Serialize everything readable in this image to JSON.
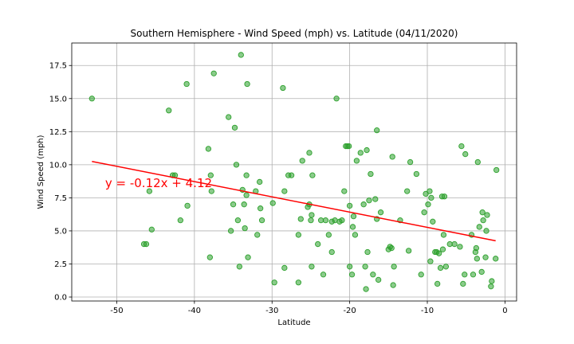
{
  "chart_data": {
    "type": "scatter",
    "title": "Southern Hemisphere - Wind Speed (mph) vs. Latitude (04/11/2020)",
    "xlabel": "Latitude",
    "ylabel": "Wind Speed (mph)",
    "xlim": [
      -55.8,
      1.5
    ],
    "ylim": [
      -0.3,
      19.2
    ],
    "xticks": [
      -50,
      -40,
      -30,
      -20,
      -10,
      0
    ],
    "yticks": [
      0.0,
      2.5,
      5.0,
      7.5,
      10.0,
      12.5,
      15.0,
      17.5
    ],
    "grid": true,
    "point_color": "#2ca02c",
    "line_color": "#ff0000",
    "regression": {
      "slope": -0.12,
      "intercept": 4.12,
      "x_range": [
        -53.2,
        -1.2
      ],
      "y_at_range": [
        10.25,
        4.25
      ]
    },
    "annotation": {
      "text": "y = -0.12x + 4.12",
      "x": -51.5,
      "y": 8.3
    },
    "points": [
      [
        -53.2,
        15.0
      ],
      [
        -46.5,
        4.0
      ],
      [
        -46.2,
        4.0
      ],
      [
        -45.8,
        8.0
      ],
      [
        -45.5,
        5.1
      ],
      [
        -43.3,
        14.1
      ],
      [
        -42.8,
        9.2
      ],
      [
        -42.5,
        9.2
      ],
      [
        -41.8,
        5.8
      ],
      [
        -41.0,
        16.1
      ],
      [
        -40.9,
        6.9
      ],
      [
        -38.2,
        11.2
      ],
      [
        -38.0,
        3.0
      ],
      [
        -37.9,
        9.2
      ],
      [
        -37.8,
        8.0
      ],
      [
        -37.5,
        16.9
      ],
      [
        -35.6,
        13.6
      ],
      [
        -35.3,
        5.0
      ],
      [
        -35.0,
        7.0
      ],
      [
        -34.8,
        12.8
      ],
      [
        -34.6,
        10.0
      ],
      [
        -34.4,
        5.8
      ],
      [
        -34.2,
        2.3
      ],
      [
        -34.0,
        18.3
      ],
      [
        -33.8,
        8.1
      ],
      [
        -33.6,
        7.0
      ],
      [
        -33.5,
        5.2
      ],
      [
        -33.3,
        9.2
      ],
      [
        -33.2,
        16.1
      ],
      [
        -33.1,
        3.0
      ],
      [
        -33.3,
        7.7
      ],
      [
        -32.1,
        8.0
      ],
      [
        -31.9,
        4.7
      ],
      [
        -31.6,
        8.7
      ],
      [
        -31.5,
        6.7
      ],
      [
        -31.3,
        5.8
      ],
      [
        -29.9,
        7.1
      ],
      [
        -29.7,
        1.1
      ],
      [
        -28.6,
        15.8
      ],
      [
        -28.4,
        8.0
      ],
      [
        -28.4,
        2.2
      ],
      [
        -27.9,
        9.2
      ],
      [
        -27.5,
        9.2
      ],
      [
        -26.6,
        4.7
      ],
      [
        -26.6,
        1.1
      ],
      [
        -26.1,
        10.3
      ],
      [
        -26.3,
        5.9
      ],
      [
        -25.4,
        6.8
      ],
      [
        -25.2,
        10.9
      ],
      [
        -25.2,
        7.0
      ],
      [
        -25.0,
        5.8
      ],
      [
        -24.9,
        6.2
      ],
      [
        -24.9,
        2.3
      ],
      [
        -24.8,
        9.2
      ],
      [
        -24.1,
        4.0
      ],
      [
        -23.7,
        5.8
      ],
      [
        -23.4,
        1.7
      ],
      [
        -23.1,
        5.8
      ],
      [
        -22.7,
        4.7
      ],
      [
        -22.3,
        3.4
      ],
      [
        -22.3,
        5.7
      ],
      [
        -21.9,
        5.8
      ],
      [
        -21.7,
        15.0
      ],
      [
        -21.3,
        5.7
      ],
      [
        -21.0,
        5.8
      ],
      [
        -20.7,
        8.0
      ],
      [
        -20.5,
        11.4
      ],
      [
        -20.3,
        11.4
      ],
      [
        -20.1,
        11.4
      ],
      [
        -20.0,
        6.9
      ],
      [
        -20.0,
        2.3
      ],
      [
        -19.7,
        1.7
      ],
      [
        -19.6,
        5.3
      ],
      [
        -19.5,
        6.1
      ],
      [
        -19.3,
        4.7
      ],
      [
        -19.1,
        10.3
      ],
      [
        -18.6,
        10.9
      ],
      [
        -18.2,
        7.0
      ],
      [
        -18.0,
        2.3
      ],
      [
        -17.8,
        11.1
      ],
      [
        -17.7,
        3.4
      ],
      [
        -17.9,
        0.6
      ],
      [
        -17.5,
        7.3
      ],
      [
        -17.3,
        9.3
      ],
      [
        -17.0,
        1.7
      ],
      [
        -16.7,
        7.4
      ],
      [
        -16.5,
        12.6
      ],
      [
        -16.5,
        5.9
      ],
      [
        -16.3,
        1.3
      ],
      [
        -16.0,
        6.4
      ],
      [
        -15.0,
        3.6
      ],
      [
        -14.8,
        3.8
      ],
      [
        -14.6,
        3.7
      ],
      [
        -14.5,
        10.6
      ],
      [
        -14.4,
        0.9
      ],
      [
        -14.3,
        2.3
      ],
      [
        -13.5,
        5.8
      ],
      [
        -12.6,
        8.0
      ],
      [
        -12.4,
        3.5
      ],
      [
        -12.2,
        10.2
      ],
      [
        -11.4,
        9.3
      ],
      [
        -10.8,
        1.7
      ],
      [
        -10.4,
        6.4
      ],
      [
        -10.2,
        7.8
      ],
      [
        -9.9,
        7.0
      ],
      [
        -9.7,
        8.0
      ],
      [
        -9.6,
        2.7
      ],
      [
        -9.5,
        7.5
      ],
      [
        -9.3,
        5.7
      ],
      [
        -9.0,
        3.4
      ],
      [
        -8.8,
        3.4
      ],
      [
        -8.7,
        1.0
      ],
      [
        -8.5,
        3.3
      ],
      [
        -8.3,
        2.2
      ],
      [
        -8.1,
        7.6
      ],
      [
        -8.0,
        3.6
      ],
      [
        -7.9,
        4.7
      ],
      [
        -7.8,
        7.6
      ],
      [
        -7.6,
        2.3
      ],
      [
        -7.1,
        4.0
      ],
      [
        -6.5,
        4.0
      ],
      [
        -5.8,
        3.8
      ],
      [
        -5.6,
        11.4
      ],
      [
        -5.4,
        1.0
      ],
      [
        -5.2,
        1.7
      ],
      [
        -5.1,
        10.8
      ],
      [
        -4.3,
        4.7
      ],
      [
        -4.1,
        1.7
      ],
      [
        -3.8,
        3.4
      ],
      [
        -3.7,
        3.7
      ],
      [
        -3.6,
        2.9
      ],
      [
        -3.5,
        10.2
      ],
      [
        -3.3,
        5.3
      ],
      [
        -3.0,
        1.9
      ],
      [
        -2.9,
        6.4
      ],
      [
        -2.8,
        5.8
      ],
      [
        -2.5,
        3.0
      ],
      [
        -2.4,
        5.0
      ],
      [
        -2.3,
        6.2
      ],
      [
        -1.8,
        0.8
      ],
      [
        -1.7,
        1.2
      ],
      [
        -1.2,
        2.9
      ],
      [
        -1.1,
        9.6
      ]
    ]
  }
}
